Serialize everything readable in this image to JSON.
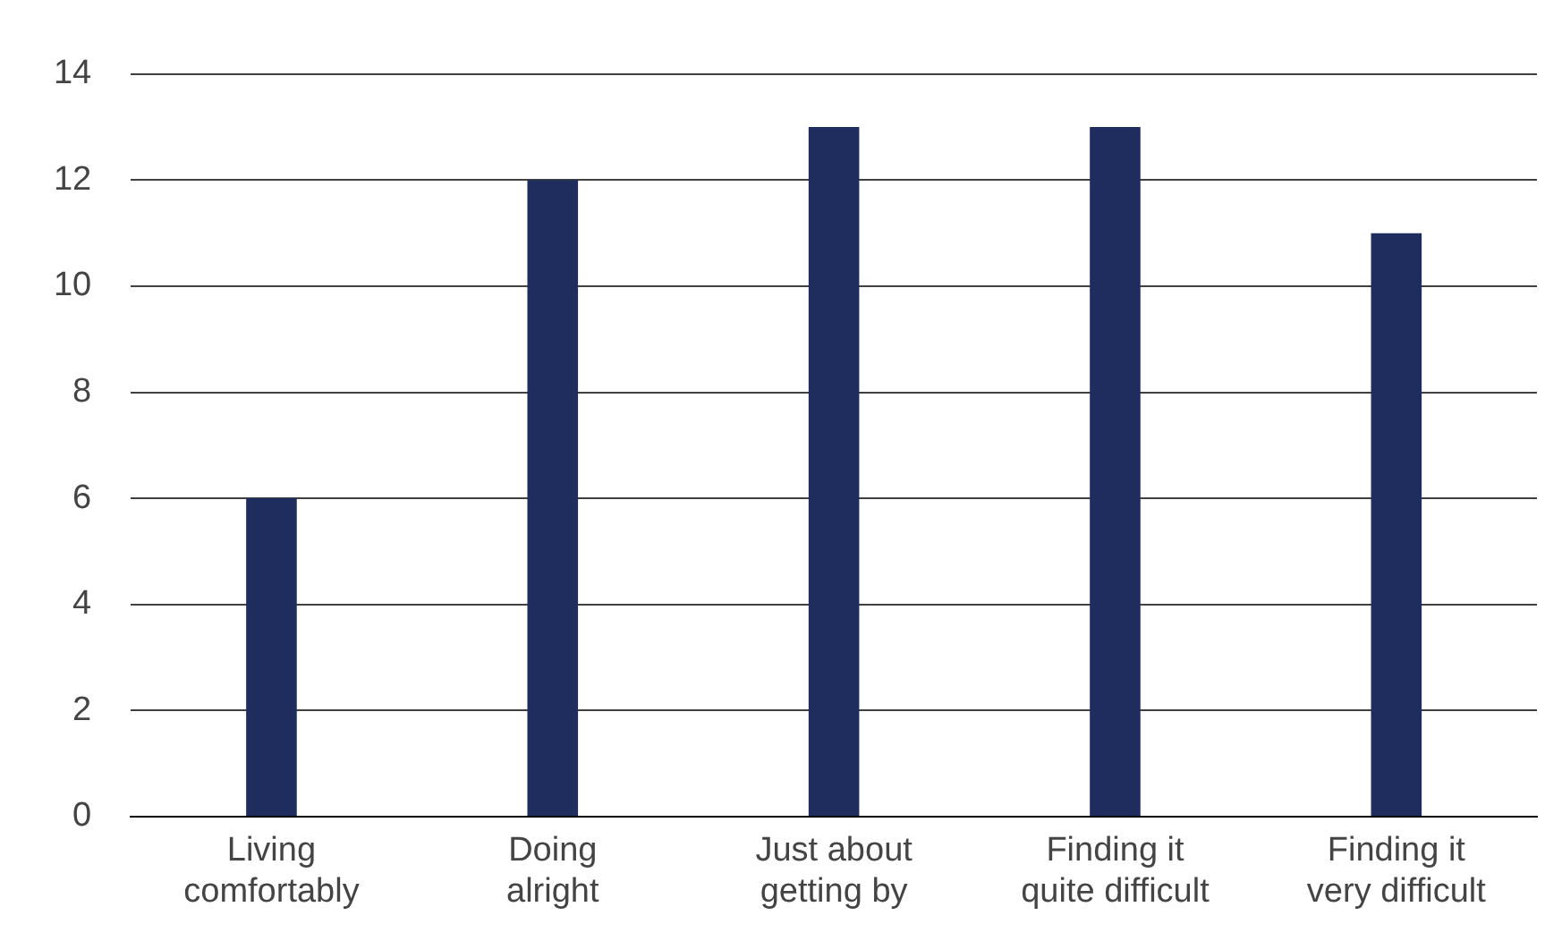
{
  "chart_data": {
    "type": "bar",
    "categories": [
      "Living comfortably",
      "Doing alright",
      "Just about getting by",
      "Finding it quite difficult",
      "Finding it very difficult"
    ],
    "values": [
      6,
      12,
      13,
      13,
      11
    ],
    "color": "#1f2d5e",
    "ylim": [
      0,
      14
    ],
    "yticks": [
      0,
      2,
      4,
      6,
      8,
      10,
      12,
      14
    ],
    "grid": "y",
    "legend": false
  }
}
